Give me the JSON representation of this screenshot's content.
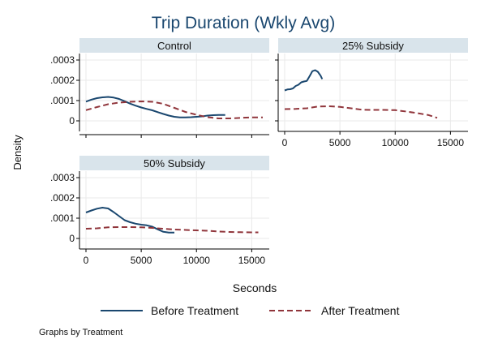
{
  "title": "Trip Duration (Wkly Avg)",
  "ylabel": "Density",
  "xlabel": "Seconds",
  "note": "Graphs by Treatment",
  "colors": {
    "before": "#1a476f",
    "after": "#90353b",
    "strip": "#d9e4eb",
    "grid": "#eaeaea",
    "text": "#111111",
    "title": "#1a476f"
  },
  "chart_data": {
    "type": "line",
    "xlim": [
      0,
      16000
    ],
    "ylim": [
      0,
      0.0003
    ],
    "x_ticks": [
      0,
      5000,
      10000,
      15000
    ],
    "y_ticks": [
      0,
      0.0001,
      0.0002,
      0.0003
    ],
    "x_tick_labels": [
      "0",
      "5000",
      "10000",
      "15000"
    ],
    "y_tick_labels": [
      "0",
      ".0001",
      ".0002",
      ".0003"
    ],
    "legend": {
      "position": "bottom",
      "entries": [
        "Before Treatment",
        "After Treatment"
      ]
    },
    "panels": [
      {
        "label": "Control",
        "series": [
          {
            "name": "Before Treatment",
            "x": [
              0,
              500,
              1000,
              1500,
              2000,
              2500,
              3000,
              3500,
              4000,
              4500,
              5000,
              5500,
              6000,
              6500,
              7000,
              7500,
              8000,
              8500,
              9000,
              9500,
              10000,
              10500,
              11000,
              11500,
              12000,
              12600
            ],
            "y": [
              9.5e-05,
              0.000105,
              0.000112,
              0.000116,
              0.000118,
              0.000115,
              0.000108,
              9.7e-05,
              8.5e-05,
              7.5e-05,
              6.6e-05,
              5.9e-05,
              5.2e-05,
              4.3e-05,
              3.4e-05,
              2.6e-05,
              2e-05,
              1.7e-05,
              1.7e-05,
              1.8e-05,
              2e-05,
              2.2e-05,
              2.6e-05,
              2.8e-05,
              2.9e-05,
              2.9e-05
            ]
          },
          {
            "name": "After Treatment",
            "x": [
              0,
              1000,
              2000,
              3000,
              4000,
              5000,
              6000,
              7000,
              8000,
              9000,
              10000,
              11000,
              12000,
              13000,
              14000,
              15000,
              16000
            ],
            "y": [
              5.3e-05,
              6.8e-05,
              8.2e-05,
              9e-05,
              9.4e-05,
              9.6e-05,
              9.4e-05,
              8.4e-05,
              6.4e-05,
              4.4e-05,
              3e-05,
              1.8e-05,
              1.2e-05,
              1.2e-05,
              1.5e-05,
              1.7e-05,
              1.7e-05
            ]
          }
        ]
      },
      {
        "label": "25% Subsidy",
        "series": [
          {
            "name": "Before Treatment",
            "x": [
              0,
              250,
              500,
              750,
              1000,
              1250,
              1500,
              1750,
              2000,
              2250,
              2500,
              2750,
              3000,
              3250,
              3400
            ],
            "y": [
              0.00015,
              0.000155,
              0.000156,
              0.00016,
              0.000172,
              0.000178,
              0.00019,
              0.000194,
              0.000197,
              0.00022,
              0.000245,
              0.00025,
              0.000242,
              0.000223,
              0.000206
            ]
          },
          {
            "name": "After Treatment",
            "x": [
              0,
              1000,
              2000,
              3000,
              4000,
              5000,
              6000,
              7000,
              8000,
              9000,
              10000,
              11000,
              12000,
              13000,
              13800
            ],
            "y": [
              5.8e-05,
              5.9e-05,
              6.2e-05,
              7.1e-05,
              7.2e-05,
              6.9e-05,
              6.2e-05,
              5.5e-05,
              5.4e-05,
              5.4e-05,
              5.3e-05,
              4.6e-05,
              3.8e-05,
              2.9e-05,
              1.5e-05
            ]
          }
        ]
      },
      {
        "label": "50% Subsidy",
        "series": [
          {
            "name": "Before Treatment",
            "x": [
              0,
              500,
              1000,
              1500,
              2000,
              2500,
              3000,
              3500,
              4000,
              4500,
              5000,
              5500,
              6000,
              6500,
              7000,
              7500,
              8000
            ],
            "y": [
              0.000128,
              0.000138,
              0.000147,
              0.000152,
              0.000148,
              0.00013,
              0.00011,
              9e-05,
              8e-05,
              7.3e-05,
              6.8e-05,
              6.5e-05,
              5.8e-05,
              4.5e-05,
              3.3e-05,
              2.9e-05,
              2.9e-05
            ]
          },
          {
            "name": "After Treatment",
            "x": [
              0,
              1000,
              2000,
              3000,
              4000,
              5000,
              6000,
              7000,
              8000,
              9000,
              10000,
              11000,
              12000,
              13000,
              14000,
              15000,
              15600
            ],
            "y": [
              4.8e-05,
              5e-05,
              5.5e-05,
              5.6e-05,
              5.6e-05,
              5.5e-05,
              5.2e-05,
              4.8e-05,
              4.4e-05,
              4.2e-05,
              4e-05,
              3.8e-05,
              3.4e-05,
              3.2e-05,
              3.1e-05,
              3e-05,
              3e-05
            ]
          }
        ]
      }
    ]
  }
}
